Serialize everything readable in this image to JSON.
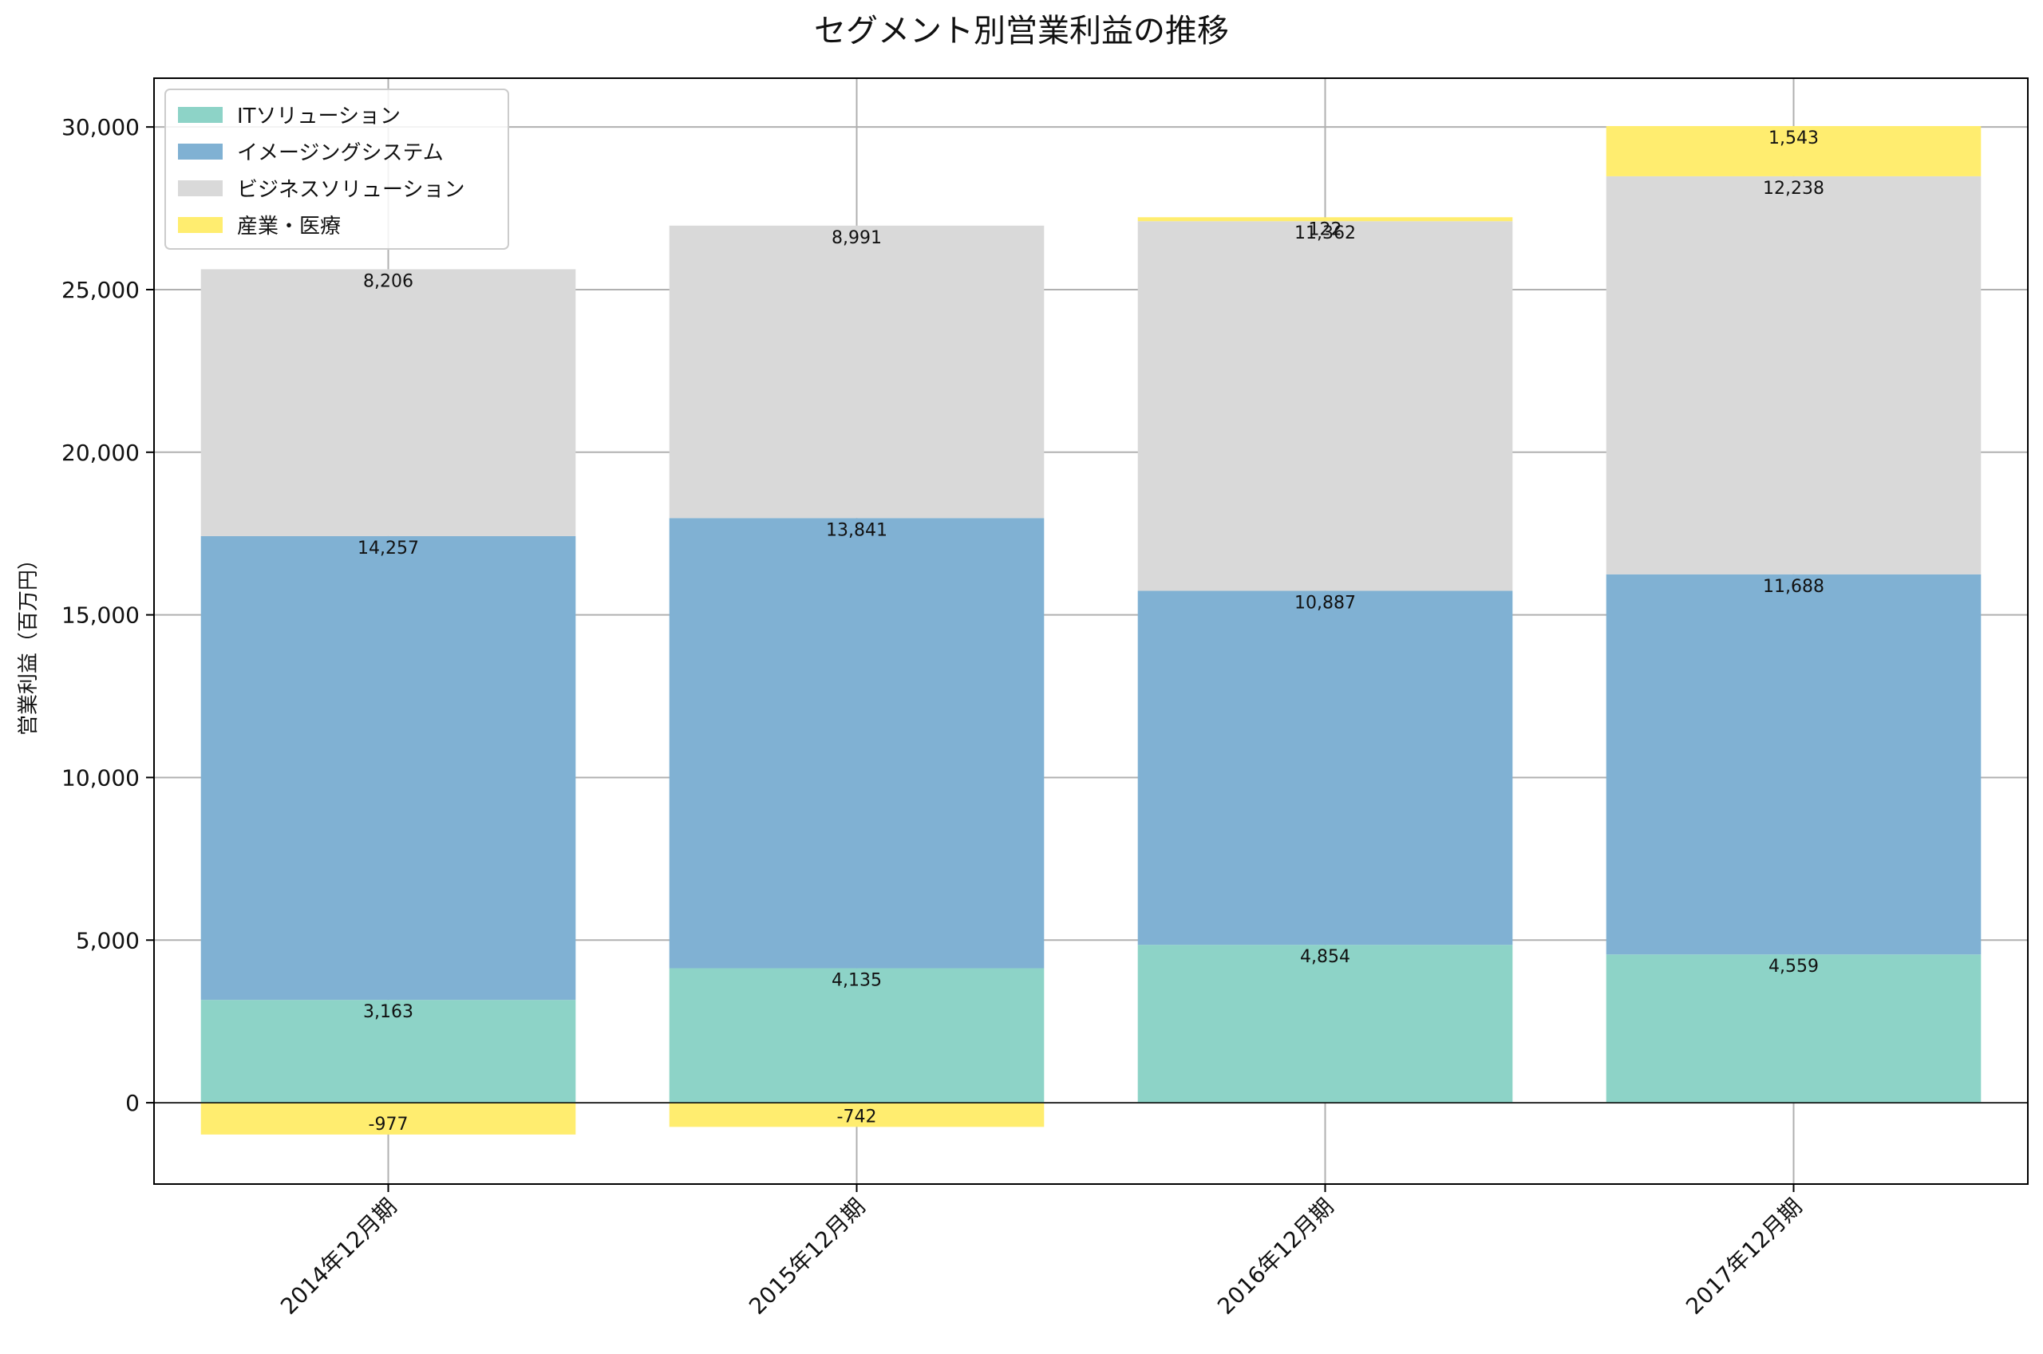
{
  "chart_data": {
    "type": "bar",
    "stacked": true,
    "title": "セグメント別営業利益の推移",
    "xlabel": "",
    "ylabel": "営業利益（百万円）",
    "categories": [
      "2014年12月期",
      "2015年12月期",
      "2016年12月期",
      "2017年12月期"
    ],
    "ylim": [
      -2500,
      31500
    ],
    "yticks": [
      0,
      5000,
      10000,
      15000,
      20000,
      25000,
      30000
    ],
    "ytick_labels": [
      "0",
      "5,000",
      "10,000",
      "15,000",
      "20,000",
      "25,000",
      "30,000"
    ],
    "grid": true,
    "legend_position": "top-left",
    "series": [
      {
        "name": "ITソリューション",
        "color": "#8dd3c7",
        "values": [
          3163,
          4135,
          4854,
          4559
        ],
        "labels": [
          "3,163",
          "4,135",
          "4,854",
          "4,559"
        ]
      },
      {
        "name": "イメージングシステム",
        "color": "#80b1d3",
        "values": [
          14257,
          13841,
          10887,
          11688
        ],
        "labels": [
          "14,257",
          "13,841",
          "10,887",
          "11,688"
        ]
      },
      {
        "name": "ビジネスソリューション",
        "color": "#d9d9d9",
        "values": [
          8206,
          8991,
          11362,
          12238
        ],
        "labels": [
          "8,206",
          "8,991",
          "11,362",
          "12,238"
        ]
      },
      {
        "name": "産業・医療",
        "color": "#ffed6f",
        "values": [
          -977,
          -742,
          122,
          1543
        ],
        "labels": [
          "-977",
          "-742",
          "122",
          "1,543"
        ]
      }
    ]
  }
}
